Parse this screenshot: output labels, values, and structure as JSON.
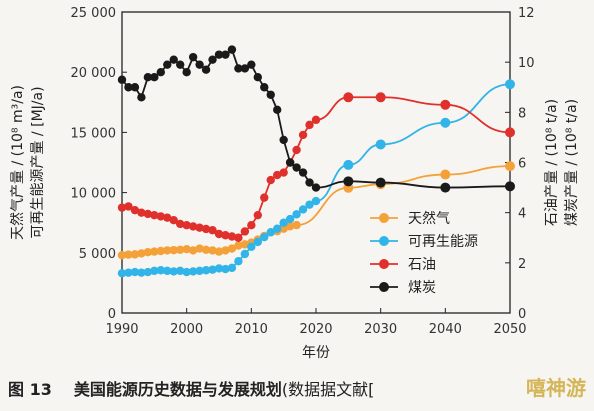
{
  "figure_label": "图 13",
  "caption": "美国能源历史数据与发展规划",
  "caption_suffix": "(数据据文献[",
  "watermark": "嘻神游",
  "chart_data": {
    "type": "line",
    "xlabel": "年份",
    "ylabel_left": [
      "天然气产量 / (10⁸ m³/a)",
      "可再生能源产量 / [MJ/a)"
    ],
    "ylabel_right": [
      "石油产量 / (10⁸ t/a)",
      "煤炭产量 / (10⁸ t/a)"
    ],
    "xlim": [
      1990,
      2050
    ],
    "ylim_left": [
      0,
      25000
    ],
    "ylim_right": [
      0,
      12
    ],
    "x_ticks": [
      1990,
      2000,
      2010,
      2020,
      2030,
      2040,
      2050
    ],
    "y_left_ticks": [
      "0",
      "5 000",
      "10 000",
      "15 000",
      "20 000",
      "25 000"
    ],
    "y_left_tick_values": [
      0,
      5000,
      10000,
      15000,
      20000,
      25000
    ],
    "y_right_ticks": [
      "0",
      "2",
      "4",
      "6",
      "8",
      "10",
      "12"
    ],
    "y_right_tick_values": [
      0,
      2,
      4,
      6,
      8,
      10,
      12
    ],
    "legend_position": "lower-right",
    "series": [
      {
        "name": "天然气",
        "axis": "left",
        "color": "#f4a13a",
        "x": [
          1990,
          1991,
          1992,
          1993,
          1994,
          1995,
          1996,
          1997,
          1998,
          1999,
          2000,
          2001,
          2002,
          2003,
          2004,
          2005,
          2006,
          2007,
          2008,
          2009,
          2010,
          2011,
          2012,
          2013,
          2014,
          2015,
          2016,
          2017
        ],
        "y": [
          4800,
          4850,
          4870,
          4950,
          5050,
          5100,
          5150,
          5200,
          5220,
          5250,
          5300,
          5200,
          5350,
          5250,
          5200,
          5100,
          5200,
          5350,
          5600,
          5700,
          5850,
          6100,
          6400,
          6700,
          6800,
          7000,
          7200,
          7300
        ],
        "markers_x": [
          2025,
          2030,
          2040,
          2050
        ],
        "markers_y": [
          10400,
          10700,
          11500,
          12200
        ]
      },
      {
        "name": "可再生能源",
        "axis": "left",
        "color": "#31b4e8",
        "x": [
          1990,
          1991,
          1992,
          1993,
          1994,
          1995,
          1996,
          1997,
          1998,
          1999,
          2000,
          2001,
          2002,
          2003,
          2004,
          2005,
          2006,
          2007,
          2008,
          2009,
          2010,
          2011,
          2012,
          2013,
          2014,
          2015,
          2016,
          2017,
          2018,
          2019,
          2020
        ],
        "y": [
          3300,
          3350,
          3400,
          3350,
          3400,
          3500,
          3550,
          3500,
          3450,
          3500,
          3400,
          3450,
          3500,
          3550,
          3600,
          3700,
          3650,
          3750,
          4300,
          4900,
          5500,
          5900,
          6300,
          6700,
          7000,
          7500,
          7800,
          8200,
          8600,
          9000,
          9300
        ],
        "markers_x": [
          2025,
          2030,
          2040,
          2050
        ],
        "markers_y": [
          12300,
          14000,
          15800,
          19000
        ]
      },
      {
        "name": "石油",
        "axis": "right",
        "color": "#e0302c",
        "x": [
          1990,
          1991,
          1992,
          1993,
          1994,
          1995,
          1996,
          1997,
          1998,
          1999,
          2000,
          2001,
          2002,
          2003,
          2004,
          2005,
          2006,
          2007,
          2008,
          2009,
          2010,
          2011,
          2012,
          2013,
          2014,
          2015,
          2016,
          2017,
          2018,
          2019,
          2020
        ],
        "y": [
          4.2,
          4.25,
          4.1,
          4.0,
          3.95,
          3.9,
          3.85,
          3.8,
          3.7,
          3.55,
          3.5,
          3.45,
          3.4,
          3.35,
          3.3,
          3.15,
          3.1,
          3.05,
          3.0,
          3.25,
          3.5,
          3.9,
          4.6,
          5.3,
          5.5,
          5.6,
          6.0,
          6.5,
          7.1,
          7.5,
          7.7
        ],
        "markers_x": [
          2025,
          2030,
          2040,
          2050
        ],
        "markers_y": [
          8.6,
          8.6,
          8.3,
          7.2
        ]
      },
      {
        "name": "煤炭",
        "axis": "right",
        "color": "#1a1a1a",
        "x": [
          1990,
          1991,
          1992,
          1993,
          1994,
          1995,
          1996,
          1997,
          1998,
          1999,
          2000,
          2001,
          2002,
          2003,
          2004,
          2005,
          2006,
          2007,
          2008,
          2009,
          2010,
          2011,
          2012,
          2013,
          2014,
          2015,
          2016,
          2017,
          2018,
          2019,
          2020
        ],
        "y": [
          9.3,
          9.0,
          9.0,
          8.6,
          9.4,
          9.4,
          9.6,
          9.9,
          10.1,
          9.9,
          9.6,
          10.2,
          9.9,
          9.7,
          10.1,
          10.3,
          10.3,
          10.5,
          9.75,
          9.75,
          9.9,
          9.4,
          9.0,
          8.7,
          8.1,
          6.9,
          6.0,
          5.8,
          5.6,
          5.2,
          5.0
        ],
        "markers_x": [
          2025,
          2030,
          2040,
          2050
        ],
        "markers_y": [
          5.25,
          5.2,
          5.0,
          5.05
        ]
      }
    ]
  }
}
